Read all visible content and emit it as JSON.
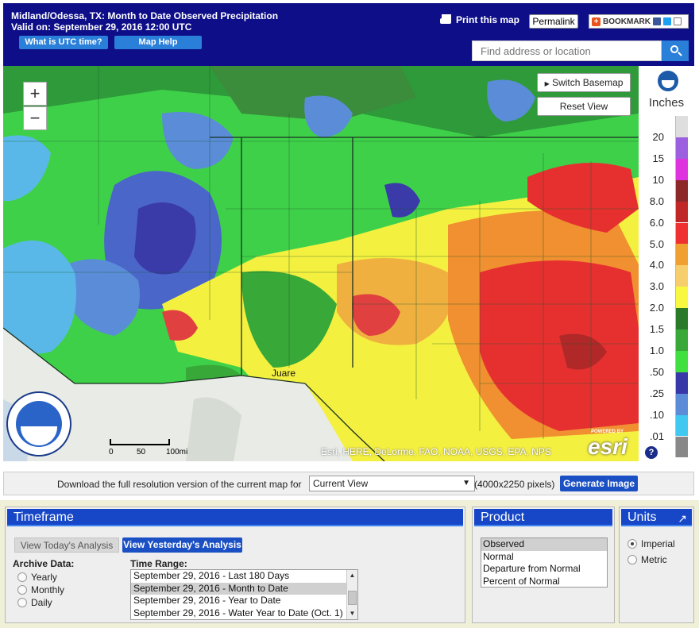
{
  "header": {
    "title_line1": "Midland/Odessa, TX: Month to Date Observed Precipitation",
    "title_line2": "Valid on: September 29, 2016 12:00 UTC",
    "utc_button": "What is UTC time?",
    "help_button": "Map Help",
    "print_label": "Print this map",
    "permalink_label": "Permalink",
    "bookmark_label": "BOOKMARK",
    "search_placeholder": "Find address or location"
  },
  "map": {
    "zoom_in": "+",
    "zoom_out": "−",
    "switch_basemap": "Switch Basemap",
    "reset_view": "Reset View",
    "attribution": "Esri, HERE, DeLorme, FAO, NOAA, USGS, EPA, NPS",
    "scale_0": "0",
    "scale_50": "50",
    "scale_100": "100mi",
    "place_label": "Juare",
    "esri_logo": "esri",
    "esri_powered": "POWERED BY"
  },
  "legend": {
    "units": "Inches",
    "help": "?",
    "bins": [
      {
        "label": "20",
        "color": "#dedede"
      },
      {
        "label": "15",
        "color": "#9b5fe0"
      },
      {
        "label": "10",
        "color": "#e033e0"
      },
      {
        "label": "8.0",
        "color": "#8c2828"
      },
      {
        "label": "6.0",
        "color": "#c02828"
      },
      {
        "label": "5.0",
        "color": "#ee3030"
      },
      {
        "label": "4.0",
        "color": "#f0a030"
      },
      {
        "label": "3.0",
        "color": "#f6cf6c"
      },
      {
        "label": "2.0",
        "color": "#f8f840"
      },
      {
        "label": "1.5",
        "color": "#2a7a2a"
      },
      {
        "label": "1.0",
        "color": "#38a838"
      },
      {
        "label": ".50",
        "color": "#40e040"
      },
      {
        "label": ".25",
        "color": "#3838a8"
      },
      {
        "label": ".10",
        "color": "#5c8cd8"
      },
      {
        "label": ".01",
        "color": "#40c8f0"
      },
      {
        "label": "",
        "color": "#888888"
      }
    ]
  },
  "download": {
    "label": "Download the full resolution version of the current map for",
    "select_value": "Current View",
    "size": "(4000x2250 pixels)",
    "button": "Generate Image"
  },
  "timeframe": {
    "title": "Timeframe",
    "today_button": "View Today's Analysis",
    "yesterday_button": "View Yesterday's Analysis",
    "archive_label": "Archive Data:",
    "archive_options": [
      "Yearly",
      "Monthly",
      "Daily"
    ],
    "range_label": "Time Range:",
    "ranges": [
      "September 29, 2016 - Last 180 Days",
      "September 29, 2016 - Month to Date",
      "September 29, 2016 - Year to Date",
      "September 29, 2016 - Water Year to Date (Oct. 1)"
    ],
    "selected_range_index": 1
  },
  "product": {
    "title": "Product",
    "options": [
      "Observed",
      "Normal",
      "Departure from Normal",
      "Percent of Normal"
    ],
    "selected_index": 0
  },
  "units": {
    "title": "Units",
    "options": [
      "Imperial",
      "Metric"
    ],
    "selected_index": 0
  }
}
